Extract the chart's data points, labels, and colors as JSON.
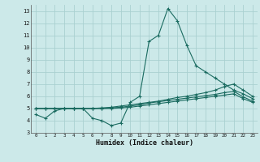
{
  "title": "",
  "xlabel": "Humidex (Indice chaleur)",
  "xlim": [
    -0.5,
    23.5
  ],
  "ylim": [
    3,
    13.5
  ],
  "yticks": [
    3,
    4,
    5,
    6,
    7,
    8,
    9,
    10,
    11,
    12,
    13
  ],
  "xticks": [
    0,
    1,
    2,
    3,
    4,
    5,
    6,
    7,
    8,
    9,
    10,
    11,
    12,
    13,
    14,
    15,
    16,
    17,
    18,
    19,
    20,
    21,
    22,
    23
  ],
  "background_color": "#cce9e9",
  "grid_color": "#aad0d0",
  "line_color": "#1a6b60",
  "line1_y": [
    4.5,
    4.2,
    4.8,
    5.0,
    5.0,
    5.0,
    4.2,
    4.0,
    3.6,
    3.8,
    5.5,
    6.0,
    10.5,
    11.0,
    13.2,
    12.2,
    10.2,
    8.5,
    8.0,
    7.5,
    7.0,
    6.5,
    6.2,
    5.8
  ],
  "line2_y": [
    5.0,
    5.0,
    5.0,
    5.0,
    5.0,
    5.0,
    5.0,
    5.05,
    5.1,
    5.2,
    5.3,
    5.4,
    5.5,
    5.6,
    5.75,
    5.9,
    6.0,
    6.15,
    6.3,
    6.5,
    6.8,
    7.0,
    6.5,
    6.0
  ],
  "line3_y": [
    5.0,
    5.0,
    5.0,
    5.0,
    5.0,
    5.0,
    5.0,
    5.0,
    5.05,
    5.1,
    5.2,
    5.3,
    5.45,
    5.55,
    5.65,
    5.75,
    5.85,
    5.95,
    6.05,
    6.15,
    6.3,
    6.4,
    5.95,
    5.6
  ],
  "line4_y": [
    5.0,
    5.0,
    5.0,
    5.0,
    5.0,
    5.0,
    5.0,
    5.0,
    5.0,
    5.05,
    5.1,
    5.2,
    5.3,
    5.4,
    5.5,
    5.6,
    5.7,
    5.8,
    5.9,
    6.0,
    6.1,
    6.2,
    5.8,
    5.5
  ]
}
